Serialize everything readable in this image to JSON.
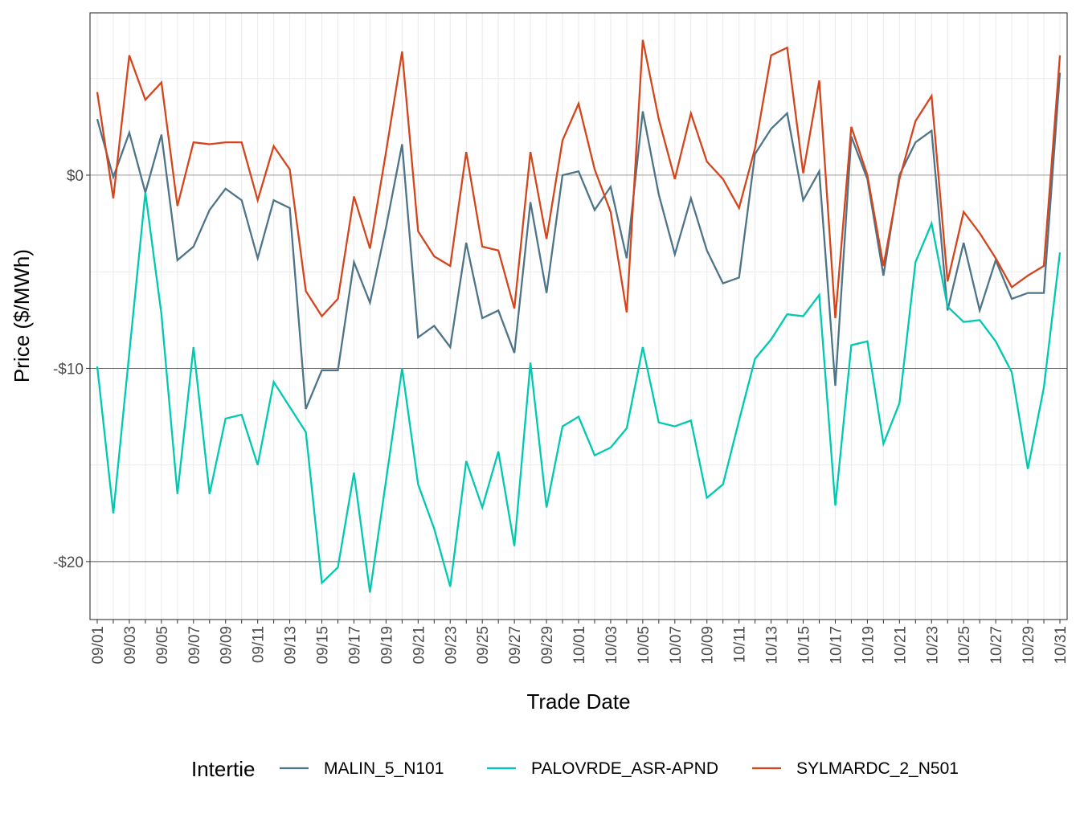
{
  "chart_data": {
    "type": "line",
    "title": "",
    "xlabel": "Trade Date",
    "ylabel": "Price ($/MWh)",
    "ylim": [
      -23.0,
      8.4
    ],
    "yticks": [
      0,
      -10,
      -20
    ],
    "ytick_labels": [
      "$0",
      "-$10",
      "-$20"
    ],
    "grid": true,
    "legend": {
      "title": "Intertie",
      "position": "bottom"
    },
    "x": [
      "09/01",
      "09/02",
      "09/03",
      "09/04",
      "09/05",
      "09/06",
      "09/07",
      "09/08",
      "09/09",
      "09/10",
      "09/11",
      "09/12",
      "09/13",
      "09/14",
      "09/15",
      "09/16",
      "09/17",
      "09/18",
      "09/19",
      "09/20",
      "09/21",
      "09/22",
      "09/23",
      "09/24",
      "09/25",
      "09/26",
      "09/27",
      "09/28",
      "09/29",
      "09/30",
      "10/01",
      "10/02",
      "10/03",
      "10/04",
      "10/05",
      "10/06",
      "10/07",
      "10/08",
      "10/09",
      "10/10",
      "10/11",
      "10/12",
      "10/13",
      "10/14",
      "10/15",
      "10/16",
      "10/17",
      "10/18",
      "10/19",
      "10/20",
      "10/21",
      "10/22",
      "10/23",
      "10/24",
      "10/25",
      "10/26",
      "10/27",
      "10/28",
      "10/29",
      "10/30",
      "10/31"
    ],
    "xtick_labels": [
      "09/01",
      "09/03",
      "09/05",
      "09/07",
      "09/09",
      "09/11",
      "09/13",
      "09/15",
      "09/17",
      "09/19",
      "09/21",
      "09/23",
      "09/25",
      "09/27",
      "09/29",
      "10/01",
      "10/03",
      "10/05",
      "10/07",
      "10/09",
      "10/11",
      "10/13",
      "10/15",
      "10/17",
      "10/19",
      "10/21",
      "10/23",
      "10/25",
      "10/27",
      "10/29",
      "10/31"
    ],
    "series": [
      {
        "name": "MALIN_5_N101",
        "color": "#4e7489",
        "values": [
          2.9,
          -0.1,
          2.2,
          -0.9,
          2.1,
          -4.4,
          -3.7,
          -1.8,
          -0.7,
          -1.3,
          -4.3,
          -1.3,
          -1.7,
          -12.1,
          -10.1,
          -10.1,
          -4.5,
          -6.6,
          -2.7,
          1.6,
          -8.4,
          -7.8,
          -8.9,
          -3.5,
          -7.4,
          -7.0,
          -9.2,
          -1.4,
          -6.1,
          0.0,
          0.2,
          -1.8,
          -0.6,
          -4.3,
          3.3,
          -1.0,
          -4.1,
          -1.2,
          -3.9,
          -5.6,
          -5.3,
          1.1,
          2.4,
          3.2,
          -1.3,
          0.2,
          -10.9,
          2.0,
          -0.2,
          -5.2,
          0.0,
          1.7,
          2.3,
          -7.0,
          -3.5,
          -7.0,
          -4.4,
          -6.4,
          -6.1,
          -6.1,
          5.3
        ]
      },
      {
        "name": "PALOVRDE_ASR-APND",
        "color": "#00c9b1",
        "values": [
          -9.9,
          -17.5,
          -9.2,
          -0.9,
          -7.2,
          -16.5,
          -8.9,
          -16.5,
          -12.6,
          -12.4,
          -15.0,
          -10.7,
          -12.0,
          -13.3,
          -21.1,
          -20.3,
          -15.4,
          -21.6,
          -15.8,
          -10.0,
          -16.0,
          -18.3,
          -21.3,
          -14.8,
          -17.2,
          -14.3,
          -19.2,
          -9.7,
          -17.2,
          -13.0,
          -12.5,
          -14.5,
          -14.1,
          -13.1,
          -8.9,
          -12.8,
          -13.0,
          -12.7,
          -16.7,
          -16.0,
          -12.7,
          -9.5,
          -8.5,
          -7.2,
          -7.3,
          -6.2,
          -17.1,
          -8.8,
          -8.6,
          -13.9,
          -11.8,
          -4.5,
          -2.5,
          -6.8,
          -7.6,
          -7.5,
          -8.6,
          -10.2,
          -15.2,
          -11.0,
          -4.0
        ]
      },
      {
        "name": "SYLMARDC_2_N501",
        "color": "#d4451c",
        "values": [
          4.3,
          -1.2,
          6.2,
          3.9,
          4.8,
          -1.6,
          1.7,
          1.6,
          1.7,
          1.7,
          -1.3,
          1.5,
          0.3,
          -6.0,
          -7.3,
          -6.4,
          -1.1,
          -3.8,
          1.2,
          6.4,
          -2.9,
          -4.2,
          -4.7,
          1.2,
          -3.7,
          -3.9,
          -6.9,
          1.2,
          -3.3,
          1.8,
          3.7,
          0.3,
          -1.9,
          -7.1,
          7.0,
          2.9,
          -0.2,
          3.2,
          0.7,
          -0.2,
          -1.7,
          1.4,
          6.2,
          6.6,
          0.1,
          4.9,
          -7.4,
          2.5,
          0.0,
          -4.7,
          -0.2,
          2.8,
          4.1,
          -5.5,
          -1.9,
          -3.0,
          -4.3,
          -5.8,
          -5.2,
          -4.7,
          6.2
        ]
      }
    ]
  }
}
